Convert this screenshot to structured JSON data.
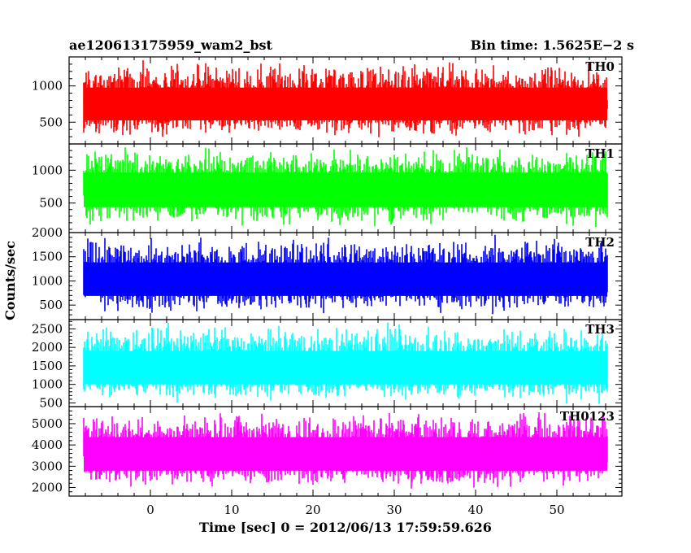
{
  "chart_data": {
    "type": "line",
    "title_left": "ae120613175959_wam2_bst",
    "title_right": "Bin time: 1.5625E−2 s",
    "xlabel": "Time [sec] 0 = 2012/06/13 17:59:59.626",
    "ylabel": "Counts/sec",
    "xlim": [
      -10,
      58
    ],
    "x_range": [
      -8.2,
      56.2
    ],
    "x_ticks": [
      0,
      10,
      20,
      30,
      40,
      50
    ],
    "x_tick_labels": [
      "0",
      "10",
      "20",
      "30",
      "40",
      "50"
    ],
    "panels": [
      {
        "name": "TH0",
        "color": "#ff0000",
        "ylim": [
          200,
          1400
        ],
        "y_ticks": [
          500,
          1000
        ],
        "y_tick_labels": [
          "500",
          "1000"
        ],
        "mean": 750,
        "min": 250,
        "max": 1400
      },
      {
        "name": "TH1",
        "color": "#00ff00",
        "ylim": [
          50,
          1400
        ],
        "y_ticks": [
          500,
          1000
        ],
        "y_tick_labels": [
          "500",
          "1000"
        ],
        "mean": 730,
        "min": 80,
        "max": 1400
      },
      {
        "name": "TH2",
        "color": "#0000ff",
        "ylim": [
          200,
          2000
        ],
        "y_ticks": [
          500,
          1000,
          1500,
          2000
        ],
        "y_tick_labels": [
          "500",
          "1000",
          "1500",
          "2000"
        ],
        "mean": 1050,
        "min": 250,
        "max": 2000
      },
      {
        "name": "TH3",
        "color": "#00ffff",
        "ylim": [
          400,
          2750
        ],
        "y_ticks": [
          500,
          1000,
          1500,
          2000,
          2500
        ],
        "y_tick_labels": [
          "500",
          "1000",
          "1500",
          "2000",
          "2500"
        ],
        "mean": 1450,
        "min": 450,
        "max": 2750
      },
      {
        "name": "TH0123",
        "color": "#ff00ff",
        "ylim": [
          1600,
          5800
        ],
        "y_ticks": [
          2000,
          3000,
          4000,
          5000
        ],
        "y_tick_labels": [
          "2000",
          "3000",
          "4000",
          "5000"
        ],
        "mean": 3600,
        "min": 1800,
        "max": 5800
      }
    ]
  }
}
